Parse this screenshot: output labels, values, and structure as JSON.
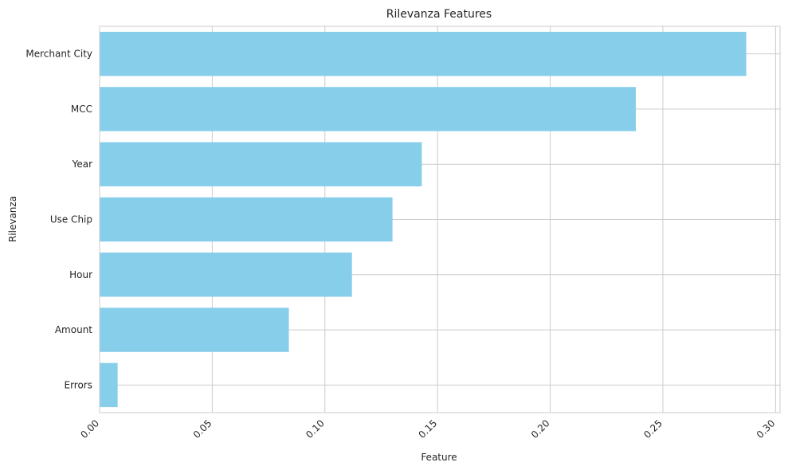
{
  "chart_data": {
    "type": "bar",
    "orientation": "horizontal",
    "title": "Rilevanza Features",
    "xlabel": "Feature",
    "ylabel": "Rilevanza",
    "categories": [
      "Merchant City",
      "MCC",
      "Year",
      "Use Chip",
      "Hour",
      "Amount",
      "Errors"
    ],
    "values": [
      0.287,
      0.238,
      0.143,
      0.13,
      0.112,
      0.084,
      0.008
    ],
    "xlim": [
      0,
      0.302
    ],
    "xticks": [
      "0.00",
      "0.05",
      "0.10",
      "0.15",
      "0.20",
      "0.25",
      "0.30"
    ],
    "xtick_values": [
      0,
      0.05,
      0.1,
      0.15,
      0.2,
      0.25,
      0.3
    ],
    "grid": true,
    "bar_color": "#87CEEB",
    "grid_color": "#cccccc"
  }
}
